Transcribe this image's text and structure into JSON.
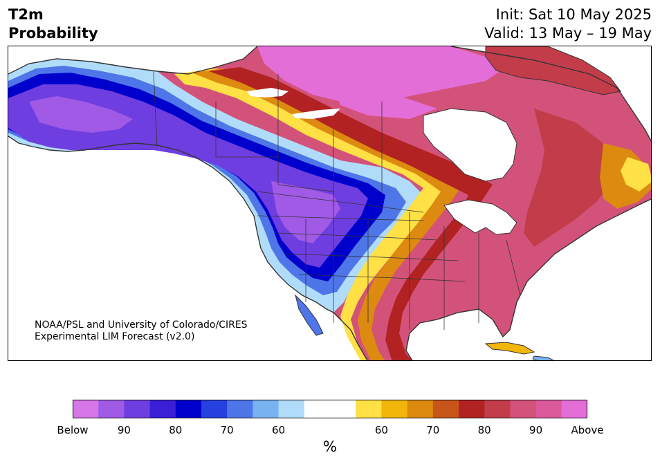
{
  "title": {
    "left_line1": "T2m",
    "left_line2": "Probability",
    "right_line1": "Init: Sat 10 May 2025",
    "right_line2": "Valid: 13 May – 19 May"
  },
  "credit": {
    "line1": "NOAA/PSL and University of Colorado/CIRES",
    "line2": "Experimental LIM Forecast (v2.0)"
  },
  "map": {
    "region": "North America",
    "background_color": "#ffffff",
    "border_color": "#333333",
    "below_colors": [
      "#d776e8",
      "#a05ae6",
      "#6f3ee0",
      "#3b1fd6",
      "#0000cc",
      "#2740e0",
      "#4f76e8",
      "#79b2f0",
      "#b0dcfa"
    ],
    "above_colors": [
      "#ffe045",
      "#f2b60a",
      "#dc8a10",
      "#c8561a",
      "#b22222",
      "#c23c4a",
      "#d3527a",
      "#dc5a9c",
      "#e46ed8"
    ]
  },
  "colorbar": {
    "unit": "%",
    "colors": [
      "#d776e8",
      "#a05ae6",
      "#6f3ee0",
      "#3b1fd6",
      "#0000cc",
      "#2740e0",
      "#4f76e8",
      "#79b2f0",
      "#b0dcfa",
      "#ffffff",
      "#ffffff",
      "#ffe045",
      "#f2b60a",
      "#dc8a10",
      "#c8561a",
      "#b22222",
      "#c23c4a",
      "#d3527a",
      "#dc5a9c",
      "#e46ed8"
    ],
    "tick_labels": [
      "Below",
      "90",
      "80",
      "70",
      "60",
      "60",
      "70",
      "80",
      "90",
      "Above"
    ]
  }
}
